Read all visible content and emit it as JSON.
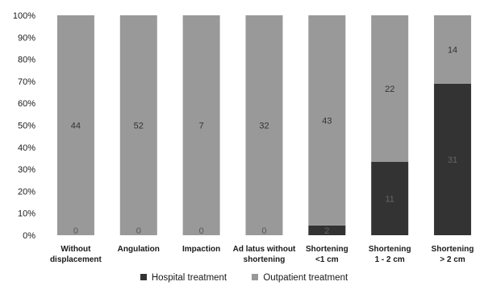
{
  "chart_data": {
    "type": "bar",
    "stacked": true,
    "normalized_percent": true,
    "categories": [
      [
        "Without",
        "displacement"
      ],
      [
        "Angulation"
      ],
      [
        "Impaction"
      ],
      [
        "Ad latus without",
        "shortening"
      ],
      [
        "Shortening",
        "<1 cm"
      ],
      [
        "Shortening",
        "1 - 2 cm"
      ],
      [
        "Shortening",
        "> 2 cm"
      ]
    ],
    "series": [
      {
        "name": "Hospital treatment",
        "values": [
          0,
          0,
          0,
          0,
          2,
          11,
          31
        ],
        "color": "#333333",
        "label_color": "#666666"
      },
      {
        "name": "Outpatient treatment",
        "values": [
          44,
          52,
          7,
          32,
          43,
          22,
          14
        ],
        "color": "#999999",
        "label_color": "#333333"
      }
    ],
    "yticks": [
      "0%",
      "10%",
      "20%",
      "30%",
      "40%",
      "50%",
      "60%",
      "70%",
      "80%",
      "90%",
      "100%"
    ],
    "ylim": [
      0,
      100
    ],
    "grid": false,
    "legend_position": "bottom"
  }
}
